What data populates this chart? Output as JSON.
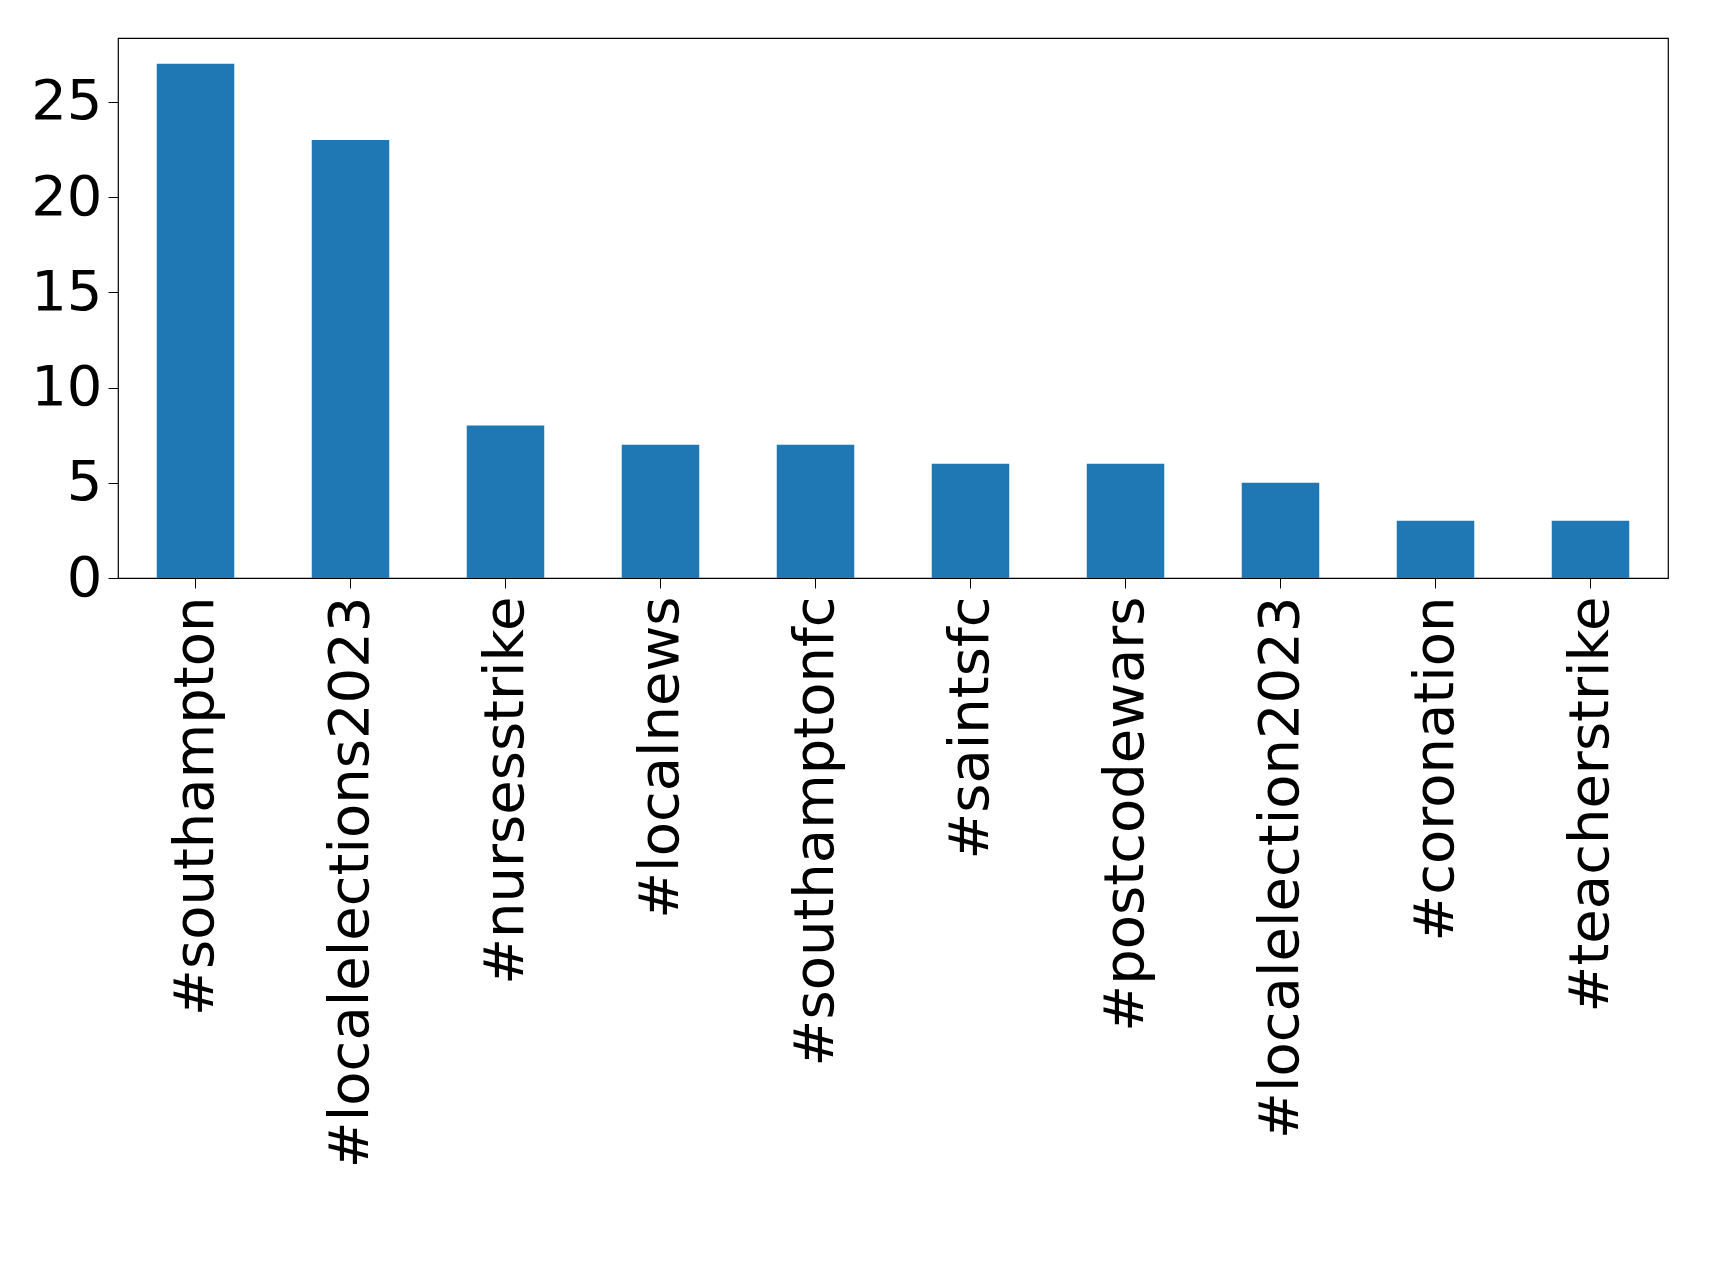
{
  "chart_data": {
    "type": "bar",
    "categories": [
      "#southampton",
      "#localelections2023",
      "#nursesstrike",
      "#localnews",
      "#southamptonfc",
      "#saintsfc",
      "#postcodewars",
      "#localelection2023",
      "#coronation",
      "#teacherstrike"
    ],
    "values": [
      27,
      23,
      8,
      7,
      7,
      6,
      6,
      5,
      3,
      3
    ],
    "color": "#1f77b4",
    "ylim": [
      0,
      28.35
    ],
    "yticks": [
      0,
      5,
      10,
      15,
      20,
      25
    ],
    "grid": false
  }
}
